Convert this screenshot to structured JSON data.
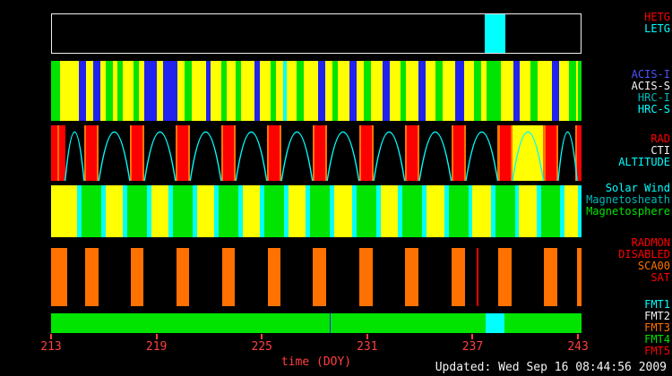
{
  "footer": {
    "updated": "Updated: Wed Sep 16 08:44:56 2009"
  },
  "palette": {
    "black": "#000000",
    "white": "#f5f5f5",
    "red": "#ff0000",
    "orange": "#ff7100",
    "yellow": "#ffff00",
    "green": "#00e400",
    "blue": "#2222ee",
    "cyan": "#00ffff",
    "teal": "#00b8b8",
    "blue_label": "#5050ff",
    "axis": "#ff4040"
  },
  "label_groups": [
    {
      "band": "gratings",
      "items": [
        [
          "HETG",
          "red"
        ],
        [
          "LETG",
          "cyan"
        ]
      ]
    },
    {
      "band": "instruments",
      "items": [
        [
          "ACIS-I",
          "blue_label"
        ],
        [
          "ACIS-S",
          "white"
        ],
        [
          "HRC-I",
          "teal"
        ],
        [
          "HRC-S",
          "cyan"
        ]
      ]
    },
    {
      "band": "radiation-altitude",
      "items": [
        [
          "RAD",
          "red"
        ],
        [
          "CTI",
          "white"
        ],
        [
          "ALTITUDE",
          "cyan"
        ]
      ]
    },
    {
      "band": "solar-wind-regions",
      "items": [
        [
          "Solar Wind",
          "cyan"
        ],
        [
          "Magnetosheath",
          "teal"
        ],
        [
          "Magnetosphere",
          "green"
        ]
      ]
    },
    {
      "band": "radmon",
      "items": [
        [
          "RADMON",
          "red"
        ],
        [
          "DISABLED",
          "red"
        ],
        [
          "SCA00",
          "orange"
        ],
        [
          "SAT",
          "red"
        ]
      ]
    },
    {
      "band": "telemetry-format",
      "items": [
        [
          "FMT1",
          "cyan"
        ],
        [
          "FMT2",
          "white"
        ],
        [
          "FMT3",
          "orange"
        ],
        [
          "FMT4",
          "green"
        ],
        [
          "FMT5",
          "red"
        ]
      ]
    }
  ],
  "chart_data": {
    "type": "timeline-bands",
    "x_axis": {
      "label": "time (DOY)",
      "min": 213,
      "max": 243.2,
      "ticks": [
        213,
        219,
        225,
        231,
        237,
        243
      ]
    },
    "segment_format": [
      "start_doy",
      "end_doy",
      "color"
    ],
    "bands": [
      {
        "id": "gratings",
        "labels": [
          "HETG",
          "LETG"
        ],
        "bg": "black",
        "border": "white",
        "segments": [
          [
            237.7,
            238.9,
            "cyan"
          ]
        ]
      },
      {
        "id": "instruments",
        "labels": [
          "ACIS-I",
          "ACIS-S",
          "HRC-I",
          "HRC-S"
        ],
        "bg": "yellow",
        "segments": [
          [
            213.0,
            213.5,
            "green"
          ],
          [
            214.6,
            215.0,
            "blue"
          ],
          [
            215.4,
            215.8,
            "blue"
          ],
          [
            216.1,
            216.5,
            "green"
          ],
          [
            216.8,
            217.1,
            "green"
          ],
          [
            217.7,
            218.0,
            "green"
          ],
          [
            218.3,
            219.0,
            "blue"
          ],
          [
            219.4,
            220.2,
            "blue"
          ],
          [
            220.6,
            221.0,
            "green"
          ],
          [
            221.8,
            222.1,
            "blue"
          ],
          [
            222.7,
            223.0,
            "green"
          ],
          [
            223.5,
            223.8,
            "green"
          ],
          [
            224.6,
            224.9,
            "blue"
          ],
          [
            225.5,
            225.8,
            "green"
          ],
          [
            226.2,
            226.4,
            "cyan"
          ],
          [
            227.0,
            227.4,
            "green"
          ],
          [
            228.2,
            228.6,
            "blue"
          ],
          [
            229.0,
            229.3,
            "green"
          ],
          [
            230.0,
            230.4,
            "blue"
          ],
          [
            230.8,
            231.2,
            "green"
          ],
          [
            231.9,
            232.3,
            "blue"
          ],
          [
            232.9,
            233.2,
            "green"
          ],
          [
            233.9,
            234.3,
            "blue"
          ],
          [
            234.9,
            235.3,
            "green"
          ],
          [
            236.0,
            236.5,
            "blue"
          ],
          [
            237.1,
            237.5,
            "green"
          ],
          [
            237.8,
            238.6,
            "green"
          ],
          [
            239.3,
            239.7,
            "blue"
          ],
          [
            240.3,
            240.7,
            "green"
          ],
          [
            241.5,
            241.9,
            "blue"
          ],
          [
            242.5,
            242.9,
            "green"
          ],
          [
            243.0,
            243.2,
            "green"
          ]
        ]
      },
      {
        "id": "radiation-altitude",
        "labels": [
          "RAD",
          "CTI",
          "ALTITUDE"
        ],
        "bg": "black",
        "segments": [
          [
            239.27,
            241.03,
            "yellow"
          ],
          [
            213.0,
            213.35,
            "red"
          ],
          [
            213.35,
            213.48,
            "orange"
          ],
          [
            213.48,
            213.8,
            "red"
          ],
          [
            214.88,
            215.0,
            "orange"
          ],
          [
            215.0,
            215.6,
            "red"
          ],
          [
            215.6,
            215.72,
            "orange"
          ],
          [
            217.48,
            217.6,
            "orange"
          ],
          [
            217.6,
            218.2,
            "red"
          ],
          [
            218.2,
            218.32,
            "orange"
          ],
          [
            220.08,
            220.2,
            "orange"
          ],
          [
            220.2,
            220.8,
            "red"
          ],
          [
            220.8,
            220.92,
            "orange"
          ],
          [
            222.68,
            222.8,
            "orange"
          ],
          [
            222.8,
            223.4,
            "red"
          ],
          [
            223.4,
            223.52,
            "orange"
          ],
          [
            225.28,
            225.4,
            "orange"
          ],
          [
            225.4,
            226.0,
            "red"
          ],
          [
            226.0,
            226.12,
            "orange"
          ],
          [
            227.88,
            228.0,
            "orange"
          ],
          [
            228.0,
            228.6,
            "red"
          ],
          [
            228.6,
            228.72,
            "orange"
          ],
          [
            230.53,
            230.65,
            "orange"
          ],
          [
            230.65,
            231.25,
            "red"
          ],
          [
            231.25,
            231.37,
            "orange"
          ],
          [
            233.13,
            233.25,
            "orange"
          ],
          [
            233.25,
            233.85,
            "red"
          ],
          [
            233.85,
            233.97,
            "orange"
          ],
          [
            235.78,
            235.9,
            "orange"
          ],
          [
            235.9,
            236.5,
            "red"
          ],
          [
            236.5,
            236.62,
            "orange"
          ],
          [
            238.43,
            238.55,
            "orange"
          ],
          [
            238.55,
            239.15,
            "red"
          ],
          [
            239.15,
            239.27,
            "orange"
          ],
          [
            241.03,
            241.15,
            "orange"
          ],
          [
            241.15,
            241.75,
            "red"
          ],
          [
            241.75,
            241.87,
            "orange"
          ],
          [
            242.85,
            242.95,
            "orange"
          ],
          [
            242.95,
            243.2,
            "red"
          ]
        ],
        "altitude_arcs": [
          [
            213.8,
            214.88
          ],
          [
            215.72,
            217.48
          ],
          [
            218.32,
            220.08
          ],
          [
            220.92,
            222.68
          ],
          [
            223.52,
            225.28
          ],
          [
            226.12,
            227.88
          ],
          [
            228.72,
            230.53
          ],
          [
            231.37,
            233.13
          ],
          [
            233.97,
            235.78
          ],
          [
            236.62,
            238.43
          ],
          [
            239.27,
            241.03
          ],
          [
            241.87,
            242.95
          ]
        ]
      },
      {
        "id": "solar-wind-regions",
        "labels": [
          "Solar Wind",
          "Magnetosheath",
          "Magnetosphere"
        ],
        "bg": "green",
        "segments": [
          [
            213.0,
            214.5,
            "yellow"
          ],
          [
            216.1,
            217.1,
            "yellow"
          ],
          [
            218.7,
            219.7,
            "yellow"
          ],
          [
            221.3,
            222.3,
            "yellow"
          ],
          [
            223.9,
            224.9,
            "yellow"
          ],
          [
            226.5,
            227.5,
            "yellow"
          ],
          [
            229.1,
            230.15,
            "yellow"
          ],
          [
            231.75,
            232.75,
            "yellow"
          ],
          [
            234.35,
            235.4,
            "yellow"
          ],
          [
            237.0,
            238.05,
            "yellow"
          ],
          [
            239.65,
            240.65,
            "yellow"
          ],
          [
            242.25,
            243.0,
            "yellow"
          ],
          [
            214.5,
            214.75,
            "cyan"
          ],
          [
            215.85,
            216.1,
            "cyan"
          ],
          [
            217.1,
            217.35,
            "cyan"
          ],
          [
            218.45,
            218.7,
            "cyan"
          ],
          [
            219.7,
            219.95,
            "cyan"
          ],
          [
            221.05,
            221.3,
            "cyan"
          ],
          [
            222.3,
            222.55,
            "cyan"
          ],
          [
            223.65,
            223.9,
            "cyan"
          ],
          [
            224.9,
            225.15,
            "cyan"
          ],
          [
            226.25,
            226.5,
            "cyan"
          ],
          [
            227.5,
            227.75,
            "cyan"
          ],
          [
            228.85,
            229.1,
            "cyan"
          ],
          [
            230.15,
            230.4,
            "cyan"
          ],
          [
            231.5,
            231.75,
            "cyan"
          ],
          [
            232.75,
            233.0,
            "cyan"
          ],
          [
            234.1,
            234.35,
            "cyan"
          ],
          [
            235.4,
            235.65,
            "cyan"
          ],
          [
            236.75,
            237.0,
            "cyan"
          ],
          [
            238.05,
            238.3,
            "cyan"
          ],
          [
            239.4,
            239.65,
            "cyan"
          ],
          [
            240.65,
            240.9,
            "cyan"
          ],
          [
            242.0,
            242.25,
            "cyan"
          ],
          [
            243.0,
            243.2,
            "cyan"
          ]
        ]
      },
      {
        "id": "radmon",
        "labels": [
          "RADMON",
          "DISABLED",
          "SCA00",
          "SAT"
        ],
        "bg": "black",
        "segments": [
          [
            213.0,
            213.9,
            "orange"
          ],
          [
            214.92,
            215.68,
            "orange"
          ],
          [
            217.52,
            218.28,
            "orange"
          ],
          [
            220.12,
            220.88,
            "orange"
          ],
          [
            222.72,
            223.48,
            "orange"
          ],
          [
            225.32,
            226.08,
            "orange"
          ],
          [
            227.92,
            228.68,
            "orange"
          ],
          [
            230.57,
            231.33,
            "orange"
          ],
          [
            233.17,
            233.93,
            "orange"
          ],
          [
            235.82,
            236.58,
            "orange"
          ],
          [
            238.47,
            239.23,
            "orange"
          ],
          [
            241.07,
            241.83,
            "orange"
          ],
          [
            242.95,
            243.2,
            "orange"
          ],
          [
            237.25,
            237.33,
            "red"
          ]
        ]
      },
      {
        "id": "telemetry-format",
        "labels": [
          "FMT1",
          "FMT2",
          "FMT3",
          "FMT4",
          "FMT5"
        ],
        "bg": "green",
        "segments": [
          [
            237.75,
            238.8,
            "cyan"
          ],
          [
            228.85,
            228.93,
            "blue"
          ]
        ]
      }
    ]
  }
}
